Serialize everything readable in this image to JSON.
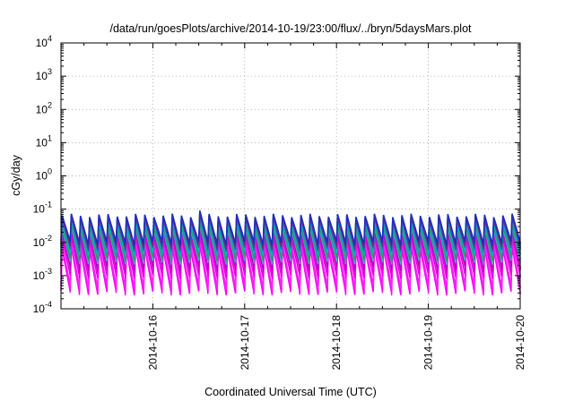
{
  "chart_data": {
    "type": "line",
    "title": "/data/run/goesPlots/archive/2014-10-19/23:00/flux/../bryn/5daysMars.plot",
    "xlabel": "Coordinated Universal Time (UTC)",
    "ylabel": "cGy/day",
    "yscale": "log",
    "ylim": [
      0.0001,
      10000
    ],
    "xlim": [
      "2014-10-15 00:00",
      "2014-10-20 00:00"
    ],
    "x_ticks": [
      "2014-10-16",
      "2014-10-17",
      "2014-10-18",
      "2014-10-19",
      "2014-10-20"
    ],
    "y_ticks": [
      {
        "base": "10",
        "exp": "-4"
      },
      {
        "base": "10",
        "exp": "-3"
      },
      {
        "base": "10",
        "exp": "-2"
      },
      {
        "base": "10",
        "exp": "-1"
      },
      {
        "base": "10",
        "exp": "0"
      },
      {
        "base": "10",
        "exp": "1"
      },
      {
        "base": "10",
        "exp": "2"
      },
      {
        "base": "10",
        "exp": "3"
      },
      {
        "base": "10",
        "exp": "4"
      }
    ],
    "grid": true,
    "pattern": {
      "description_period_hours": 2.4,
      "cycles": 50
    },
    "series": [
      {
        "color": "#1a2fbf",
        "peak": 0.065,
        "trough": 0.0095
      },
      {
        "color": "#8a1f6e",
        "peak": 0.058,
        "trough": 0.0075
      },
      {
        "color": "#2a5bd7",
        "peak": 0.05,
        "trough": 0.0062
      },
      {
        "color": "#00b4b4",
        "peak": 0.04,
        "trough": 0.0045
      },
      {
        "color": "#20a060",
        "peak": 0.032,
        "trough": 0.0032
      },
      {
        "color": "#4aa3df",
        "peak": 0.027,
        "trough": 0.0025
      },
      {
        "color": "#c000c0",
        "peak": 0.02,
        "trough": 0.0016
      },
      {
        "color": "#e000e0",
        "peak": 0.014,
        "trough": 0.00095
      },
      {
        "color": "#ff20ff",
        "peak": 0.009,
        "trough": 0.00045
      },
      {
        "color": "#ff00ff",
        "peak": 0.0065,
        "trough": 0.0003
      },
      {
        "color": "#ff3030",
        "peak": 0.045,
        "trough": 0.0018
      }
    ]
  }
}
